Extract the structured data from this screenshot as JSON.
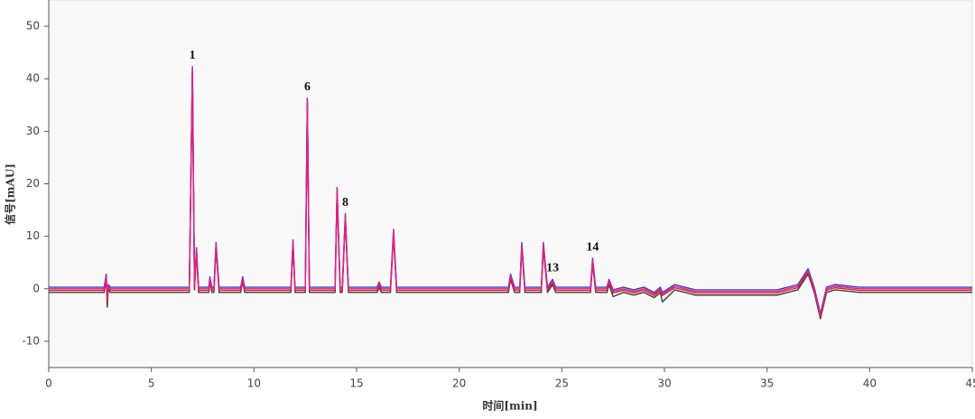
{
  "chart_data": {
    "type": "line",
    "xlabel": "时间[min]",
    "ylabel": "信号[mAU]",
    "xlim": [
      0,
      45
    ],
    "xticks": [
      0,
      5,
      10,
      15,
      20,
      25,
      30,
      35,
      40,
      45
    ],
    "ylim": [
      -15,
      55
    ],
    "yticks": [
      -10,
      0,
      10,
      20,
      30,
      40,
      50
    ],
    "x": [
      0,
      2.7,
      2.8,
      2.85,
      2.9,
      3.0,
      6.85,
      7.0,
      7.1,
      7.2,
      7.3,
      7.8,
      7.85,
      7.95,
      8.05,
      8.15,
      8.3,
      9.35,
      9.45,
      9.55,
      11.8,
      11.9,
      12.0,
      12.5,
      12.6,
      12.7,
      13.95,
      14.05,
      14.2,
      14.3,
      14.45,
      14.6,
      16.0,
      16.1,
      16.2,
      16.65,
      16.8,
      16.95,
      22.4,
      22.5,
      22.7,
      22.95,
      23.05,
      23.2,
      24.0,
      24.1,
      24.3,
      24.55,
      24.7,
      26.4,
      26.5,
      26.65,
      27.2,
      27.3,
      27.5,
      28.0,
      28.5,
      29.0,
      29.5,
      29.8,
      29.9,
      30.5,
      31.5,
      35.5,
      36.5,
      37.0,
      37.3,
      37.6,
      37.9,
      38.3,
      39.5,
      45
    ],
    "series": [
      {
        "color": "#3b3bd6",
        "values": [
          0.3,
          0.3,
          2.8,
          -1.7,
          0.8,
          0.3,
          0.3,
          42.3,
          0.8,
          7.8,
          0.3,
          0.3,
          2.3,
          0.3,
          0.3,
          8.8,
          0.3,
          0.3,
          2.3,
          0.3,
          0.3,
          9.3,
          0.3,
          0.3,
          36.3,
          0.3,
          0.3,
          19.3,
          0.3,
          0.3,
          14.3,
          0.3,
          0.3,
          1.3,
          0.3,
          0.3,
          11.3,
          0.3,
          0.3,
          2.8,
          0.3,
          0.3,
          8.8,
          0.3,
          0.3,
          8.8,
          0.3,
          1.8,
          0.3,
          0.3,
          5.8,
          0.3,
          0.3,
          1.8,
          -0.2,
          0.3,
          -0.2,
          0.3,
          -0.7,
          0.3,
          -0.7,
          0.8,
          -0.2,
          -0.2,
          0.8,
          3.8,
          0.3,
          -4.7,
          0.3,
          0.8,
          0.3,
          0.3
        ]
      },
      {
        "color": "#3a3a3a",
        "values": [
          -0.7,
          -0.7,
          1.8,
          -3.5,
          -0.2,
          -0.7,
          -0.7,
          41.3,
          -0.2,
          6.8,
          -0.7,
          -0.7,
          1.3,
          -0.7,
          -0.7,
          7.8,
          -0.7,
          -0.7,
          1.3,
          -0.7,
          -0.7,
          8.3,
          -0.7,
          -0.7,
          35.3,
          -0.7,
          -0.7,
          18.3,
          -0.7,
          -0.7,
          13.3,
          -0.7,
          -0.7,
          0.3,
          -0.7,
          -0.7,
          10.3,
          -0.7,
          -0.7,
          1.8,
          -0.7,
          -0.7,
          7.8,
          -0.7,
          -0.7,
          7.8,
          -0.7,
          0.8,
          -0.7,
          -0.7,
          4.8,
          -0.7,
          -0.7,
          0.8,
          -1.5,
          -0.7,
          -1.2,
          -0.7,
          -1.7,
          -0.7,
          -2.5,
          -0.2,
          -1.2,
          -1.2,
          -0.2,
          2.8,
          -0.7,
          -5.7,
          -0.7,
          -0.2,
          -0.7,
          -0.7
        ]
      },
      {
        "color": "#e02424",
        "values": [
          -0.3,
          -0.3,
          2.2,
          -2.3,
          0.2,
          -0.3,
          -0.3,
          41.7,
          0.2,
          7.2,
          -0.3,
          -0.3,
          1.7,
          -0.3,
          -0.3,
          8.2,
          -0.3,
          -0.3,
          1.7,
          -0.3,
          -0.3,
          8.7,
          -0.3,
          -0.3,
          35.7,
          -0.3,
          -0.3,
          18.7,
          -0.3,
          -0.3,
          13.7,
          -0.3,
          -0.3,
          0.7,
          -0.3,
          -0.3,
          10.7,
          -0.3,
          -0.3,
          2.2,
          -0.3,
          -0.3,
          8.2,
          -0.3,
          -0.3,
          8.2,
          -0.3,
          1.2,
          -0.3,
          -0.3,
          5.2,
          -0.3,
          -0.3,
          1.2,
          -0.8,
          -0.3,
          -0.8,
          -0.3,
          -1.3,
          -0.3,
          -1.3,
          0.2,
          -0.8,
          -0.8,
          0.2,
          3.2,
          -0.3,
          -5.3,
          -0.3,
          0.2,
          -0.3,
          -0.3
        ]
      },
      {
        "color": "#e0208c",
        "values": [
          0,
          0,
          2.5,
          -2,
          0.5,
          0,
          0,
          42,
          0.5,
          7.5,
          0,
          0,
          2,
          0,
          0,
          8.5,
          0,
          0,
          2,
          0,
          0,
          9,
          0,
          0,
          36,
          0,
          0,
          19,
          0,
          0,
          14,
          0,
          0,
          1,
          0,
          0,
          11,
          0,
          0,
          2.5,
          0,
          0,
          8.5,
          0,
          0,
          8.5,
          0,
          1.5,
          0,
          0,
          5.5,
          0,
          0,
          1.5,
          -0.5,
          0,
          -0.5,
          0,
          -1,
          0,
          -1,
          0.5,
          -0.5,
          -0.5,
          0.5,
          3.5,
          0,
          -5,
          0,
          0.5,
          0,
          0
        ]
      }
    ],
    "annotations": [
      {
        "text": "1",
        "x": 7.0
      },
      {
        "text": "6",
        "x": 12.6
      },
      {
        "text": "8",
        "x": 14.45
      },
      {
        "text": "13",
        "x": 24.55
      },
      {
        "text": "14",
        "x": 26.5
      }
    ]
  }
}
